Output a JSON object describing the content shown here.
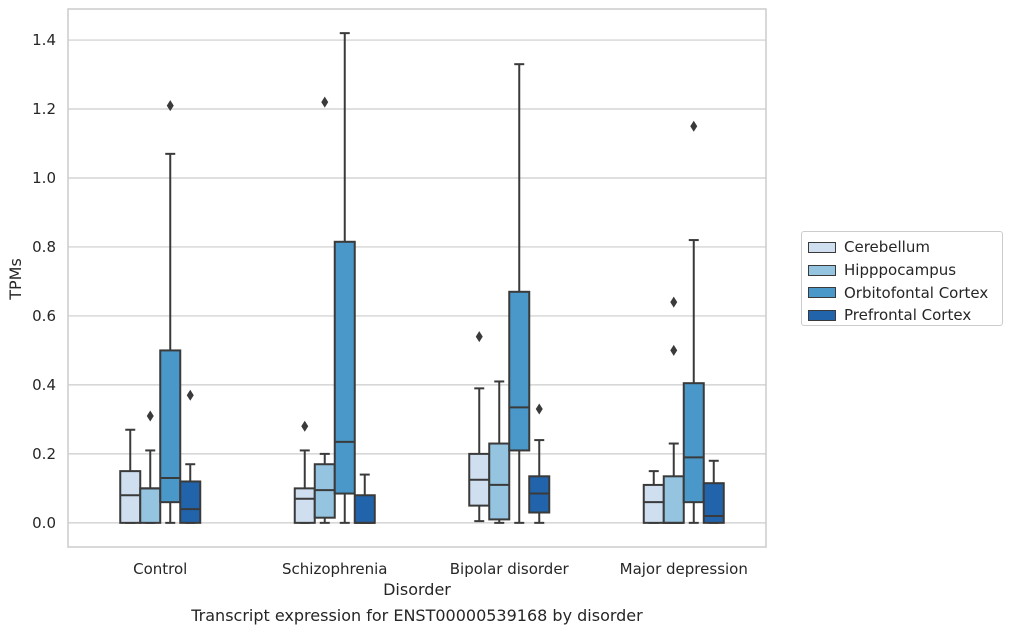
{
  "chart_data": {
    "type": "box",
    "title": "",
    "xlabel": "Disorder",
    "ylabel": "TPMs",
    "ylim": [
      -0.07,
      1.49
    ],
    "yticks": [
      "0.0",
      "0.2",
      "0.4",
      "0.6",
      "0.8",
      "1.0",
      "1.2",
      "1.4"
    ],
    "grid": true,
    "legend_position": "right",
    "categories": [
      "Control",
      "Schizophrenia",
      "Bipolar disorder",
      "Major depression"
    ],
    "series": [
      {
        "name": "Cerebellum",
        "color": "#cfdfef",
        "boxes": [
          {
            "whisker_low": 0.0,
            "q1": 0.0,
            "median": 0.08,
            "q3": 0.15,
            "whisker_high": 0.27,
            "outliers": []
          },
          {
            "whisker_low": 0.0,
            "q1": 0.0,
            "median": 0.07,
            "q3": 0.1,
            "whisker_high": 0.21,
            "outliers": [
              0.28
            ]
          },
          {
            "whisker_low": 0.005,
            "q1": 0.05,
            "median": 0.125,
            "q3": 0.2,
            "whisker_high": 0.39,
            "outliers": [
              0.54
            ]
          },
          {
            "whisker_low": 0.0,
            "q1": 0.0,
            "median": 0.06,
            "q3": 0.11,
            "whisker_high": 0.15,
            "outliers": []
          }
        ]
      },
      {
        "name": "Hipppocampus",
        "color": "#94c4df",
        "boxes": [
          {
            "whisker_low": 0.0,
            "q1": 0.0,
            "median": 0.1,
            "q3": 0.1,
            "whisker_high": 0.21,
            "outliers": [
              0.31
            ]
          },
          {
            "whisker_low": 0.0,
            "q1": 0.015,
            "median": 0.095,
            "q3": 0.17,
            "whisker_high": 0.2,
            "outliers": [
              1.22
            ]
          },
          {
            "whisker_low": 0.0,
            "q1": 0.01,
            "median": 0.11,
            "q3": 0.23,
            "whisker_high": 0.41,
            "outliers": []
          },
          {
            "whisker_low": 0.0,
            "q1": 0.0,
            "median": 0.0,
            "q3": 0.135,
            "whisker_high": 0.23,
            "outliers": [
              0.5,
              0.64
            ]
          }
        ]
      },
      {
        "name": "Orbitofontal Cortex",
        "color": "#4a98c9",
        "boxes": [
          {
            "whisker_low": 0.0,
            "q1": 0.06,
            "median": 0.13,
            "q3": 0.5,
            "whisker_high": 1.07,
            "outliers": [
              1.21
            ]
          },
          {
            "whisker_low": 0.0,
            "q1": 0.085,
            "median": 0.235,
            "q3": 0.815,
            "whisker_high": 1.42,
            "outliers": []
          },
          {
            "whisker_low": 0.0,
            "q1": 0.21,
            "median": 0.335,
            "q3": 0.67,
            "whisker_high": 1.33,
            "outliers": []
          },
          {
            "whisker_low": 0.0,
            "q1": 0.06,
            "median": 0.19,
            "q3": 0.405,
            "whisker_high": 0.82,
            "outliers": [
              1.15
            ]
          }
        ]
      },
      {
        "name": "Prefrontal Cortex",
        "color": "#2164ab",
        "boxes": [
          {
            "whisker_low": 0.0,
            "q1": 0.0,
            "median": 0.04,
            "q3": 0.12,
            "whisker_high": 0.17,
            "outliers": [
              0.37
            ]
          },
          {
            "whisker_low": 0.0,
            "q1": 0.0,
            "median": 0.0,
            "q3": 0.08,
            "whisker_high": 0.14,
            "outliers": []
          },
          {
            "whisker_low": 0.0,
            "q1": 0.03,
            "median": 0.085,
            "q3": 0.135,
            "whisker_high": 0.24,
            "outliers": [
              0.33
            ]
          },
          {
            "whisker_low": 0.0,
            "q1": 0.0,
            "median": 0.02,
            "q3": 0.115,
            "whisker_high": 0.18,
            "outliers": []
          }
        ]
      }
    ]
  },
  "caption": "Transcript expression for ENST00000539168 by disorder",
  "colors": {
    "grid": "#cccccc",
    "frame": "#cccccc",
    "line": "#3a3a3a"
  }
}
